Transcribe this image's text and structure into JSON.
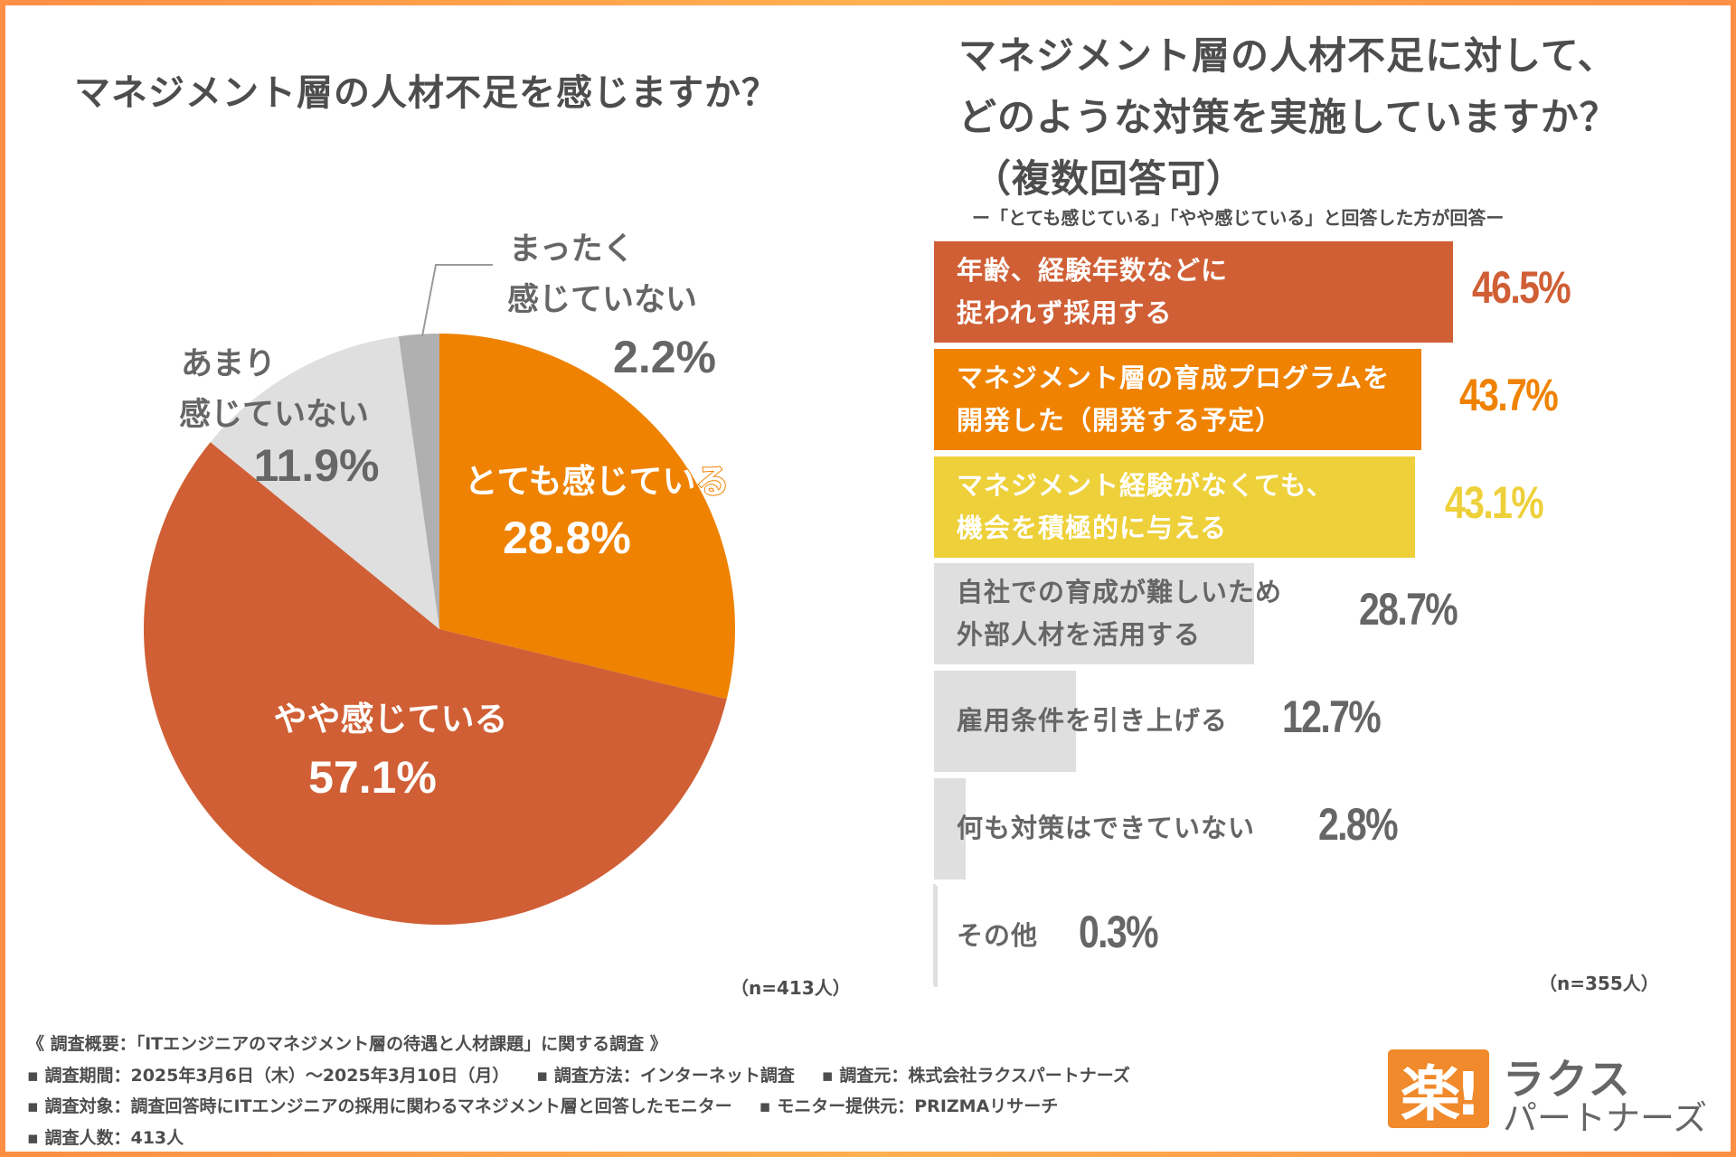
{
  "colors": {
    "frame": "#ff9a48",
    "very": "#ef8200",
    "somewhat": "#d05f35",
    "not_much": "#dfdfdf",
    "not_at_all": "#b0b0b0",
    "bar_yellow": "#eed03a",
    "text_gray": "#666666"
  },
  "left": {
    "title": "マネジメント層の人材不足を感じますか？",
    "n_note": "（n=413人）"
  },
  "right": {
    "title_line1": "マネジメント層の人材不足に対して、",
    "title_line2": "どのような対策を実施していますか？",
    "title_line3": "（複数回答可）",
    "subnote": "ー「とても感じている」「やや感じている」と回答した方が回答ー",
    "n_note": "（n=355人）"
  },
  "chart_data": [
    {
      "type": "pie",
      "title": "マネジメント層の人材不足を感じますか？",
      "start": "top, clockwise",
      "slices": [
        {
          "label": "とても感じている",
          "value": 28.8,
          "display": "28.8%",
          "color": "#ef8200"
        },
        {
          "label": "やや感じている",
          "value": 57.1,
          "display": "57.1%",
          "color": "#d05f35"
        },
        {
          "label_line1": "あまり",
          "label_line2": "感じていない",
          "label": "あまり感じていない",
          "value": 11.9,
          "display": "11.9%",
          "color": "#dfdfdf"
        },
        {
          "label_line1": "まったく",
          "label_line2": "感じていない",
          "label": "まったく感じていない",
          "value": 2.2,
          "display": "2.2%",
          "color": "#b0b0b0"
        }
      ],
      "n": "n=413人"
    },
    {
      "type": "bar",
      "orientation": "horizontal",
      "title": "マネジメント層の人材不足に対して、どのような対策を実施していますか？（複数回答可）",
      "xlim": [
        0,
        100
      ],
      "categories": [
        {
          "line1": "年齢、経験年数などに",
          "line2": "捉われず採用する"
        },
        {
          "line1": "マネジメント層の育成プログラムを",
          "line2": "開発した（開発する予定）"
        },
        {
          "line1": "マネジメント経験がなくても、",
          "line2": "機会を積極的に与える"
        },
        {
          "line1": "自社での育成が難しいため",
          "line2": "外部人材を活用する"
        },
        {
          "line1": "雇用条件を引き上げる",
          "line2": ""
        },
        {
          "line1": "何も対策はできていない",
          "line2": ""
        },
        {
          "line1": "その他",
          "line2": ""
        }
      ],
      "values": [
        46.5,
        43.7,
        43.1,
        28.7,
        12.7,
        2.8,
        0.3
      ],
      "labels": [
        "46.5%",
        "43.7%",
        "43.1%",
        "28.7%",
        "12.7%",
        "2.8%",
        "0.3%"
      ],
      "bar_colors": [
        "#d05f35",
        "#ef8200",
        "#eed03a",
        "#dfdfdf",
        "#dfdfdf",
        "#dfdfdf",
        "#dfdfdf"
      ],
      "label_colors": [
        "#ffffff",
        "#ffffff",
        "#ffffff",
        "#666666",
        "#666666",
        "#666666",
        "#666666"
      ],
      "value_colors": [
        "#d05f35",
        "#ef8200",
        "#eed03a",
        "#666666",
        "#666666",
        "#666666",
        "#666666"
      ],
      "n": "n=355人"
    }
  ],
  "footer": {
    "line1": "《 調査概要：「ITエンジニアのマネジメント層の待遇と人材課題」に関する調査 》",
    "period": "▪ 調査期間：2025年3月6日（木）～2025年3月10日（月）",
    "method": "▪ 調査方法：インターネット調査",
    "source": "▪ 調査元：株式会社ラクスパートナーズ",
    "target": "▪ 調査対象：調査回答時にITエンジニアの採用に関わるマネジメント層と回答したモニター",
    "provider": "▪ モニター提供元：PRIZMAリサーチ",
    "count": "▪ 調査人数：413人"
  },
  "logo": {
    "mark": "楽!",
    "line1": "ラクス",
    "line2": "パートナーズ"
  }
}
